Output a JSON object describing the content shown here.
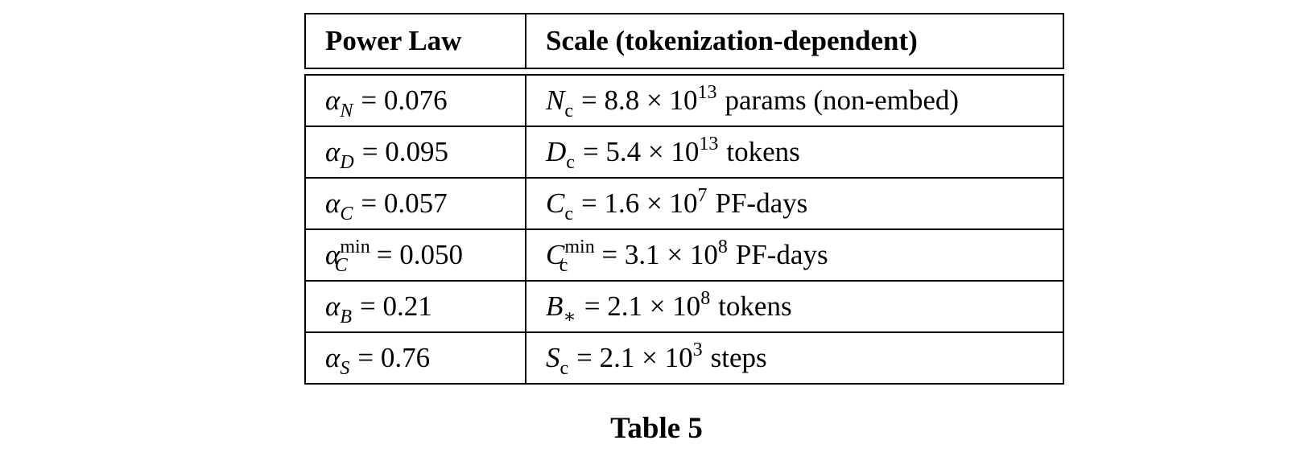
{
  "table": {
    "headers": [
      "Power Law",
      "Scale (tokenization-dependent)"
    ],
    "rows": [
      {
        "law": {
          "symbol": "α",
          "sub": "N",
          "sup": "",
          "value": "= 0.076"
        },
        "scale": {
          "symbol": "N",
          "sub": "c",
          "sup": "",
          "eq": "= 8.8 × 10",
          "exp": "13",
          "unit": "params (non-embed)"
        }
      },
      {
        "law": {
          "symbol": "α",
          "sub": "D",
          "sup": "",
          "value": "= 0.095"
        },
        "scale": {
          "symbol": "D",
          "sub": "c",
          "sup": "",
          "eq": "= 5.4 × 10",
          "exp": "13",
          "unit": "tokens"
        }
      },
      {
        "law": {
          "symbol": "α",
          "sub": "C",
          "sup": "",
          "value": "= 0.057"
        },
        "scale": {
          "symbol": "C",
          "sub": "c",
          "sup": "",
          "eq": "= 1.6 × 10",
          "exp": "7",
          "unit": "PF-days"
        }
      },
      {
        "law": {
          "symbol": "α",
          "sub": "C",
          "sup": "min",
          "value": "= 0.050"
        },
        "scale": {
          "symbol": "C",
          "sub": "c",
          "sup": "min",
          "eq": "= 3.1 × 10",
          "exp": "8",
          "unit": "PF-days"
        }
      },
      {
        "law": {
          "symbol": "α",
          "sub": "B",
          "sup": "",
          "value": "= 0.21"
        },
        "scale": {
          "symbol": "B",
          "sub": "∗",
          "sup": "",
          "eq": "= 2.1 × 10",
          "exp": "8",
          "unit": "tokens"
        }
      },
      {
        "law": {
          "symbol": "α",
          "sub": "S",
          "sup": "",
          "value": "= 0.76"
        },
        "scale": {
          "symbol": "S",
          "sub": "c",
          "sup": "",
          "eq": "= 2.1 × 10",
          "exp": "3",
          "unit": "steps"
        }
      }
    ]
  },
  "caption": "Table 5"
}
